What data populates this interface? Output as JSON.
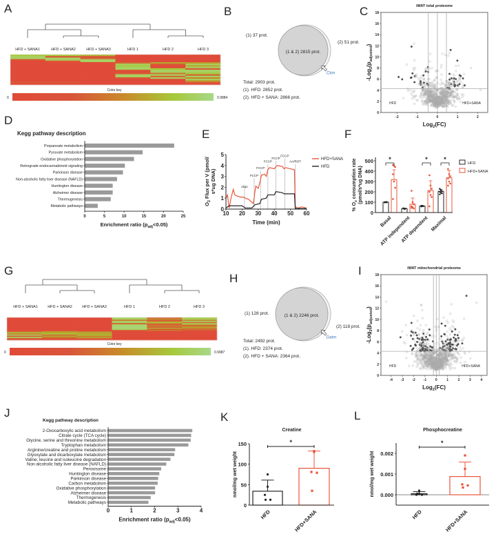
{
  "panels": {
    "A": "A",
    "B": "B",
    "C": "C",
    "D": "D",
    "E": "E",
    "F": "F",
    "G": "G",
    "H": "H",
    "I": "I",
    "J": "J",
    "K": "K",
    "L": "L"
  },
  "venn": [
    {
      "panel": "B",
      "only1": "(1) 37 prot.",
      "both": "(1 & 2) 2815 prot.",
      "only2": "(2) 51 prot.",
      "gene": "Ckm",
      "total": "Total: 2903 prot.",
      "set1": "(1). HFD: 2852 prot.",
      "set2": "(2). HFD + SANA: 2866 prot."
    },
    {
      "panel": "H",
      "only1": "(1) 128 prot.",
      "both": "(1 & 2) 2246 prot.",
      "only2": "(2) 118 prot.",
      "gene": "Gatm",
      "total": "Total: 2492 prot.",
      "set1": "(1). HFD: 2374 prot.",
      "set2": "(2). HFD + SANA: 2364 prot."
    }
  ],
  "colors": {
    "hfd": "#222222",
    "sana": "#e8553a",
    "bar_gray": "#9a9a9a",
    "heat_low": "#e04a38",
    "heat_high": "#a8d888",
    "gene_label": "#3a7ab8"
  },
  "chart_data": [
    {
      "panel": "A",
      "type": "heatmap",
      "columns": [
        "HFD + SANA1",
        "HFD + SANA2",
        "HFD + SANA3",
        "HFD 1",
        "HFD 2",
        "HFD 3"
      ],
      "color_key_label": "Color key",
      "min_label": "0",
      "max_label": "0.9884",
      "values": [
        [
          0.8,
          0.9,
          0.9,
          0.1,
          0,
          0,
          0,
          0,
          0,
          0,
          0,
          0,
          0,
          0,
          0,
          0,
          0,
          0,
          0.1,
          0
        ],
        [
          0.8,
          0.1,
          0.9,
          0.9,
          0.1,
          0,
          0,
          0,
          0,
          0,
          0,
          0,
          0,
          0,
          0,
          0,
          0,
          0,
          0.1,
          0
        ],
        [
          0.7,
          0.1,
          0.1,
          0.9,
          0.9,
          0,
          0,
          0,
          0,
          0,
          0,
          0,
          0,
          0,
          0,
          0,
          0,
          0,
          0,
          0
        ],
        [
          0,
          0,
          0,
          0,
          0,
          0.2,
          0.9,
          0.8,
          0.9,
          0.9,
          0.1,
          0,
          0.1,
          0.9,
          0.9,
          0.1,
          0,
          0,
          0,
          0
        ],
        [
          0,
          0,
          0,
          0,
          0,
          0.6,
          0.1,
          0,
          0,
          0.8,
          0.9,
          0.9,
          0.3,
          0.9,
          0.2,
          0.9,
          0,
          0,
          0,
          0
        ],
        [
          0,
          0,
          0,
          0,
          0,
          0.5,
          0.9,
          0.6,
          0.9,
          0.1,
          0.9,
          0.9,
          0.8,
          0.2,
          0.9,
          0.4,
          0.9,
          0.5,
          0.1,
          0
        ]
      ]
    },
    {
      "panel": "C",
      "type": "scatter",
      "title": "iWAT total proteome",
      "xlabel_parts": [
        [
          "Log",
          0
        ],
        [
          "2",
          1
        ],
        [
          "(FC)",
          0
        ]
      ],
      "ylabel_parts": [
        [
          "-Log",
          0
        ],
        [
          "2",
          1
        ],
        [
          "(p",
          0
        ],
        [
          "adjusted",
          1
        ],
        [
          ")",
          0
        ]
      ],
      "xlim": [
        -2.8,
        2.5
      ],
      "ylim": [
        0,
        18
      ],
      "xticks": [
        "-2",
        "-1",
        "0",
        "1",
        "2"
      ],
      "yticks": [
        "0",
        "2",
        "4",
        "6",
        "8",
        "10",
        "12",
        "14",
        "16",
        "18"
      ],
      "threshold_y": 4.3,
      "threshold_x": [
        -0.45,
        0,
        0.45
      ],
      "region_left": "HFD",
      "region_right": "HFD+SANA",
      "approx_points": 900
    },
    {
      "panel": "D",
      "type": "bar",
      "orientation": "horizontal",
      "title": "Kegg pathway description",
      "categories": [
        "Propanoate metabolism",
        "Pyruvate metabolism",
        "Oxidative phosphorylation",
        "Retrograde endocannabinoid signaling",
        "Parkinson disease",
        "Non-alcoholic fatty liver disease (NAFLD)",
        "Huntington disease",
        "Alzheimer disease",
        "Thermogenesis",
        "Metabolic pathways"
      ],
      "values": [
        22.7,
        14.7,
        12.5,
        10.2,
        9.7,
        8.2,
        7.1,
        7.1,
        6.6,
        3.3
      ],
      "xlim": [
        0,
        25
      ],
      "xticks": [
        "0",
        "5",
        "10",
        "15",
        "20",
        "25"
      ],
      "xlabel_parts": [
        [
          "Enrichment ratio  (p",
          0
        ],
        [
          "adj",
          1
        ],
        [
          "<0.05)",
          0
        ]
      ]
    },
    {
      "panel": "E",
      "type": "line",
      "xlabel": "Time (min)",
      "ylabel_parts": [
        [
          "O",
          0
        ],
        [
          "2",
          1
        ],
        [
          " Flux per V (pmol/",
          0
        ]
      ],
      "ylabel_line2": "s*ug DNA)",
      "xlim": [
        10,
        60
      ],
      "ylim": [
        0,
        5
      ],
      "xticks": [
        "10",
        "20",
        "30",
        "40",
        "50",
        "60"
      ],
      "yticks": [
        "0",
        "1",
        "2",
        "3",
        "4",
        "5"
      ],
      "annotations": [
        {
          "label": "oligo",
          "x": 21.5,
          "y": 1.9
        },
        {
          "label": "FCCP",
          "x": 27.5,
          "y": 2.9
        },
        {
          "label": "FCCP",
          "x": 31.5,
          "y": 3.6
        },
        {
          "label": "FCCP",
          "x": 36,
          "y": 4.2
        },
        {
          "label": "FCCP",
          "x": 41,
          "y": 4.5
        },
        {
          "label": "FCCP",
          "x": 46.5,
          "y": 4.7
        },
        {
          "label": "AA/ROT",
          "x": 53,
          "y": 4.2
        }
      ],
      "series": [
        {
          "name": "HFD+SANA",
          "points": [
            [
              10,
              1.0
            ],
            [
              11,
              1.3
            ],
            [
              11.5,
              0.6
            ],
            [
              12,
              0.1
            ],
            [
              13,
              0.9
            ],
            [
              13.5,
              1.2
            ],
            [
              14.5,
              1.8
            ],
            [
              15.5,
              1.3
            ],
            [
              17,
              1.2
            ],
            [
              19,
              1.1
            ],
            [
              21,
              1.1
            ],
            [
              22,
              1.0
            ],
            [
              24,
              0.9
            ],
            [
              25.5,
              0.7
            ],
            [
              27,
              0.5
            ],
            [
              28,
              1.6
            ],
            [
              28.5,
              2.1
            ],
            [
              30,
              1.9
            ],
            [
              31,
              2.4
            ],
            [
              32,
              3.1
            ],
            [
              34,
              3.2
            ],
            [
              35,
              3.0
            ],
            [
              36,
              3.6
            ],
            [
              37,
              3.8
            ],
            [
              40,
              3.7
            ],
            [
              41,
              3.9
            ],
            [
              42,
              4.0
            ],
            [
              45,
              3.9
            ],
            [
              46,
              3.7
            ],
            [
              47,
              3.8
            ],
            [
              50,
              3.7
            ],
            [
              52.5,
              3.6
            ],
            [
              53,
              0.2
            ],
            [
              55,
              0.1
            ],
            [
              57,
              0.2
            ],
            [
              60,
              0.1
            ]
          ]
        },
        {
          "name": "HFD",
          "points": [
            [
              10,
              0.1
            ],
            [
              12,
              0.3
            ],
            [
              16,
              0.3
            ],
            [
              20,
              0.3
            ],
            [
              22,
              0.1
            ],
            [
              26,
              0.1
            ],
            [
              28,
              0.4
            ],
            [
              31,
              0.5
            ],
            [
              32,
              0.9
            ],
            [
              35,
              1.0
            ],
            [
              36,
              1.3
            ],
            [
              40,
              1.3
            ],
            [
              41,
              1.6
            ],
            [
              45,
              1.5
            ],
            [
              46,
              1.4
            ],
            [
              52.5,
              1.4
            ],
            [
              53,
              0.05
            ],
            [
              60,
              0.05
            ]
          ]
        }
      ]
    },
    {
      "panel": "F",
      "type": "bar",
      "categories": [
        "Basal",
        "ATP independent",
        "ATP dependent",
        "Maximal"
      ],
      "ylabel_parts": [
        [
          "% O",
          0
        ],
        [
          "2",
          1
        ],
        [
          " consumption rate",
          0
        ]
      ],
      "ylabel_line2": "(pmol/s*ug DNA)",
      "ylim": [
        0,
        500
      ],
      "yticks": [
        "0",
        "100",
        "200",
        "300",
        "400",
        "500"
      ],
      "significance": [
        true,
        false,
        true,
        true
      ],
      "sig_label": "*",
      "series": [
        {
          "name": "HFD",
          "values": [
            100,
            38,
            62,
            205
          ],
          "sd": [
            3,
            4,
            4,
            18
          ],
          "points": [
            [
              100,
              98,
              102,
              97,
              101,
              99,
              100
            ],
            [
              40,
              35,
              38,
              42,
              33,
              37,
              39
            ],
            [
              65,
              60,
              62,
              58,
              66,
              61,
              63
            ],
            [
              230,
              215,
              205,
              200,
              190,
              185,
              175
            ]
          ]
        },
        {
          "name": "HFD+SANA",
          "values": [
            318,
            80,
            212,
            335
          ],
          "sd": [
            95,
            60,
            95,
            70
          ],
          "points": [
            [
              460,
              450,
              440,
              370,
              300,
              240,
              130
            ],
            [
              210,
              100,
              80,
              60,
              50,
              40,
              45
            ],
            [
              360,
              260,
              230,
              200,
              170,
              150,
              60
            ],
            [
              420,
              370,
              350,
              330,
              300,
              280,
              260
            ]
          ]
        }
      ]
    },
    {
      "panel": "G",
      "type": "heatmap",
      "columns": [
        "HFD + SANA1",
        "HFD + SANA2",
        "HFD + SANA3",
        "HFD 1",
        "HFD 2",
        "HFD 3"
      ],
      "color_key_label": "Color key",
      "min_label": "0",
      "max_label": "0.9987",
      "values": [
        [
          0,
          0,
          0,
          0,
          0,
          0,
          0,
          0,
          0,
          0,
          0,
          0,
          0.2,
          0.8,
          0.3,
          0.9,
          0.1,
          0.9,
          0.2,
          0
        ],
        [
          0,
          0,
          0,
          0,
          0,
          0,
          0,
          0,
          0,
          0,
          0,
          0,
          0.5,
          0.6,
          0.8,
          0.2,
          0.6,
          0.3,
          0.1,
          0
        ],
        [
          0,
          0,
          0,
          0,
          0,
          0,
          0,
          0,
          0,
          0,
          0,
          0,
          0.3,
          0.7,
          0.5,
          0.8,
          0.3,
          0.6,
          0.2,
          0
        ],
        [
          0.9,
          0.9,
          0.3,
          0.9,
          0.9,
          0.1,
          0.9,
          0.95,
          0.95,
          0.95,
          0.9,
          0.1,
          0,
          0,
          0,
          0,
          0,
          0,
          0,
          0
        ],
        [
          0.1,
          0.5,
          0.1,
          0.3,
          0.8,
          0.3,
          0.1,
          0.4,
          0.1,
          0.6,
          0.1,
          0.3,
          0,
          0,
          0,
          0,
          0,
          0,
          0,
          0
        ],
        [
          0.8,
          0.9,
          0.4,
          0.9,
          0.2,
          0.9,
          0.5,
          0.1,
          0.6,
          0.4,
          0.2,
          0.1,
          0,
          0,
          0,
          0,
          0,
          0,
          0,
          0
        ]
      ]
    },
    {
      "panel": "I",
      "type": "scatter",
      "title": "iWAT mitochondrial proteome",
      "xlabel_parts": [
        [
          "Log",
          0
        ],
        [
          "2",
          1
        ],
        [
          "(FC)",
          0
        ]
      ],
      "ylabel_parts": [
        [
          "-Log",
          0
        ],
        [
          "2",
          1
        ],
        [
          "(p",
          0
        ],
        [
          "adjusted",
          1
        ],
        [
          ")",
          0
        ]
      ],
      "xlim": [
        -4.9,
        4.5
      ],
      "ylim": [
        0,
        18
      ],
      "xticks": [
        "-4",
        "-3",
        "-2",
        "-1",
        "0",
        "1",
        "2",
        "3",
        "4"
      ],
      "yticks": [
        "0",
        "2",
        "4",
        "6",
        "8",
        "10",
        "12",
        "14",
        "16",
        "18"
      ],
      "threshold_y": 4.3,
      "threshold_x": [
        -0.25,
        0,
        0.25
      ],
      "region_left": "HFD",
      "region_right": "HFD+SANA",
      "approx_points": 1100
    },
    {
      "panel": "J",
      "type": "bar",
      "orientation": "horizontal",
      "title": "Kegg pathway description",
      "categories": [
        "2-Oxocarboxylic acid metabolism",
        "Citrate cycle (TCA cycle)",
        "Glycine, serine and threonine metabolism",
        "Tryptophan metabolism",
        "Arginine/creatine and proline metabolism",
        "Glyoxylate and dicarboxylate metabolism",
        "Valine, leucine and isoleucine degradation",
        "Non-alcoholic fatty liver disease (NAFLD)",
        "Peroxisome",
        "Huntington disease",
        "Parkinson disease",
        "Carbon metabolism",
        "Oxidative phosphorylation",
        "Alzheimer disease",
        "Thermogenesis",
        "Metabolic pathways"
      ],
      "values": [
        3.62,
        3.57,
        3.55,
        3.45,
        2.88,
        2.85,
        2.68,
        2.5,
        2.28,
        2.2,
        2.15,
        2.13,
        2.02,
        2.02,
        1.83,
        1.73
      ],
      "xlim": [
        0,
        4
      ],
      "xticks": [
        "0",
        "1",
        "2",
        "3",
        "4"
      ],
      "xlabel_parts": [
        [
          "Enrichment ratio  (p",
          0
        ],
        [
          "adj",
          1
        ],
        [
          "<0.05)",
          0
        ]
      ]
    },
    {
      "panel": "K",
      "type": "bar",
      "title": "Creatine",
      "ylabel": "nmol/mg wet weight",
      "categories": [
        "HFD",
        "HFD+SANA"
      ],
      "values": [
        34,
        90
      ],
      "sd": [
        27,
        42
      ],
      "points": [
        [
          75,
          45,
          25,
          13,
          13
        ],
        [
          132,
          130,
          81,
          79,
          35
        ]
      ],
      "ylim": [
        0,
        150
      ],
      "yticks": [
        "0",
        "50",
        "100",
        "150"
      ],
      "sig_label": "*"
    },
    {
      "panel": "L",
      "type": "bar",
      "title": "Phosphocreatine",
      "ylabel": "nmol/mg wet weight",
      "categories": [
        "HFD",
        "HFD+SANA"
      ],
      "values": [
        5e-05,
        0.00088
      ],
      "sd": [
        0.0001,
        0.0007
      ],
      "points": [
        [
          0.0002,
          5e-05,
          0,
          0,
          5e-05
        ],
        [
          0.0019,
          0.00125,
          0.0005,
          0.00045,
          0.00035
        ]
      ],
      "ylim": [
        -0.0005,
        0.0025
      ],
      "yticks": [
        "0.000",
        "0.001",
        "0.002"
      ],
      "sig_label": "*"
    }
  ]
}
